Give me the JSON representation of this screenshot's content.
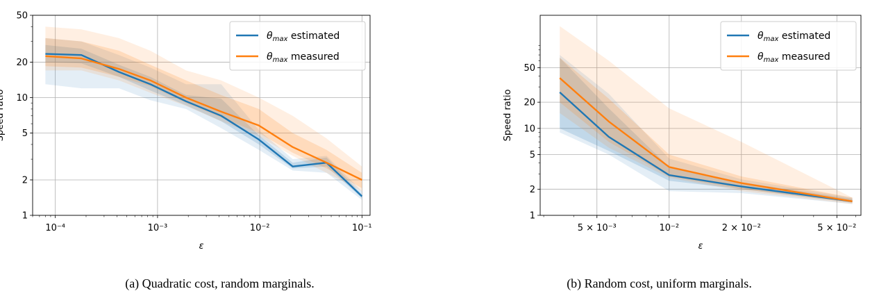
{
  "chart_data": [
    {
      "type": "line",
      "caption": "(a) Quadratic cost, random marginals.",
      "xlabel": "ε",
      "ylabel": "Speed ratio",
      "xscale": "log",
      "yscale": "log",
      "xlim": [
        6e-05,
        0.12
      ],
      "ylim": [
        1,
        50
      ],
      "grid": true,
      "legend_placement": "upper-right",
      "xticks": [
        {
          "value": 0.0001,
          "label": "10⁻⁴"
        },
        {
          "value": 0.001,
          "label": "10⁻³"
        },
        {
          "value": 0.01,
          "label": "10⁻²"
        },
        {
          "value": 0.1,
          "label": "10⁻¹"
        }
      ],
      "yticks": [
        {
          "value": 1,
          "label": "1"
        },
        {
          "value": 2,
          "label": "2"
        },
        {
          "value": 5,
          "label": "5"
        },
        {
          "value": 10,
          "label": "10"
        },
        {
          "value": 20,
          "label": "20"
        },
        {
          "value": 50,
          "label": "50"
        }
      ],
      "series": [
        {
          "name": "θmax estimated",
          "color": "#1f77b4",
          "x": [
            8e-05,
            0.00018,
            0.00042,
            0.00085,
            0.0019,
            0.0042,
            0.0098,
            0.021,
            0.045,
            0.1
          ],
          "y": [
            23.5,
            23.0,
            16.5,
            13.0,
            9.3,
            7.0,
            4.4,
            2.6,
            2.8,
            1.45
          ],
          "band_inner": [
            [
              20,
              28
            ],
            [
              19.5,
              26
            ],
            [
              15,
              19
            ],
            [
              11.5,
              15
            ],
            [
              8.6,
              10.5
            ],
            [
              6.3,
              9.8
            ],
            [
              4.0,
              4.8
            ],
            [
              2.5,
              2.8
            ],
            [
              2.6,
              3.1
            ],
            [
              1.4,
              1.5
            ]
          ],
          "band_outer": [
            [
              13,
              32
            ],
            [
              12,
              30
            ],
            [
              12,
              23
            ],
            [
              9.5,
              18
            ],
            [
              8.0,
              13
            ],
            [
              5.5,
              13
            ],
            [
              3.6,
              5.3
            ],
            [
              2.4,
              3.0
            ],
            [
              2.3,
              3.2
            ],
            [
              1.35,
              1.6
            ]
          ]
        },
        {
          "name": "θmax measured",
          "color": "#ff7f0e",
          "x": [
            8e-05,
            0.00018,
            0.00042,
            0.00085,
            0.0019,
            0.0042,
            0.0098,
            0.021,
            0.045,
            0.1
          ],
          "y": [
            22.5,
            21.5,
            17.5,
            14.0,
            10.0,
            7.6,
            5.8,
            3.8,
            2.8,
            2.0
          ],
          "band_inner": [
            [
              18.5,
              32
            ],
            [
              18,
              30
            ],
            [
              15,
              25
            ],
            [
              12.5,
              19
            ],
            [
              9.0,
              14
            ],
            [
              6.8,
              10.5
            ],
            [
              5.0,
              8.0
            ],
            [
              3.4,
              5.0
            ],
            [
              2.5,
              3.6
            ],
            [
              1.7,
              2.3
            ]
          ],
          "band_outer": [
            [
              17,
              40
            ],
            [
              17,
              38
            ],
            [
              14,
              32
            ],
            [
              11,
              25
            ],
            [
              8.5,
              17
            ],
            [
              6.3,
              14
            ],
            [
              4.7,
              10
            ],
            [
              3.2,
              7.0
            ],
            [
              2.3,
              4.5
            ],
            [
              1.6,
              2.6
            ]
          ]
        }
      ]
    },
    {
      "type": "line",
      "caption": "(b) Random cost, uniform marginals.",
      "xlabel": "ε",
      "ylabel": "Speed ratio",
      "xscale": "log",
      "yscale": "log",
      "xlim": [
        0.0029,
        0.063
      ],
      "ylim": [
        1,
        200
      ],
      "grid": true,
      "legend_placement": "upper-right",
      "xticks": [
        {
          "value": 0.005,
          "label": "5 × 10⁻³"
        },
        {
          "value": 0.01,
          "label": "10⁻²"
        },
        {
          "value": 0.02,
          "label": "2 × 10⁻²"
        },
        {
          "value": 0.05,
          "label": "5 × 10⁻²"
        }
      ],
      "yticks": [
        {
          "value": 1,
          "label": "1"
        },
        {
          "value": 2,
          "label": "2"
        },
        {
          "value": 5,
          "label": "5"
        },
        {
          "value": 10,
          "label": "10"
        },
        {
          "value": 20,
          "label": "20"
        },
        {
          "value": 50,
          "label": "50"
        }
      ],
      "series": [
        {
          "name": "θmax estimated",
          "color": "#1f77b4",
          "x": [
            0.0035,
            0.0056,
            0.01,
            0.02,
            0.058
          ],
          "y": [
            26,
            8.0,
            2.9,
            2.15,
            1.45
          ],
          "band_inner": [
            [
              10,
              65
            ],
            [
              5.5,
              17
            ],
            [
              2.5,
              3.6
            ],
            [
              2.0,
              2.4
            ],
            [
              1.4,
              1.55
            ]
          ],
          "band_outer": [
            [
              9,
              70
            ],
            [
              5.0,
              25
            ],
            [
              1.9,
              4.5
            ],
            [
              1.8,
              2.6
            ],
            [
              1.35,
              1.6
            ]
          ]
        },
        {
          "name": "θmax measured",
          "color": "#ff7f0e",
          "x": [
            0.0035,
            0.0056,
            0.01,
            0.02,
            0.058
          ],
          "y": [
            38,
            12.0,
            3.6,
            2.35,
            1.45
          ],
          "band_inner": [
            [
              20,
              65
            ],
            [
              7.0,
              22
            ],
            [
              2.8,
              5.0
            ],
            [
              2.0,
              2.8
            ],
            [
              1.4,
              1.6
            ]
          ],
          "band_outer": [
            [
              15,
              150
            ],
            [
              6.0,
              60
            ],
            [
              2.7,
              17
            ],
            [
              1.9,
              7.0
            ],
            [
              1.35,
              1.6
            ]
          ]
        }
      ]
    }
  ]
}
